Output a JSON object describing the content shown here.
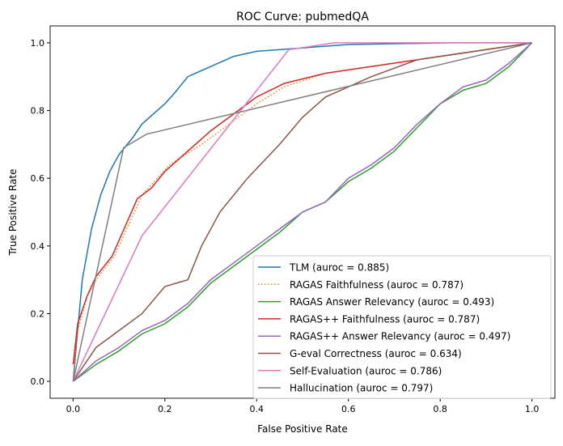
{
  "chart_data": {
    "type": "line",
    "title": "ROC Curve: pubmedQA",
    "xlabel": "False Positive Rate",
    "ylabel": "True Positive Rate",
    "xlim": [
      -0.05,
      1.05
    ],
    "ylim": [
      -0.05,
      1.05
    ],
    "xticks": [
      "0.0",
      "0.2",
      "0.4",
      "0.6",
      "0.8",
      "1.0"
    ],
    "yticks": [
      "0.0",
      "0.2",
      "0.4",
      "0.6",
      "0.8",
      "1.0"
    ],
    "grid": false,
    "legend_position": "lower-right",
    "series": [
      {
        "name": "TLM (auroc = 0.885)",
        "color": "#1f77b4",
        "style": "solid",
        "x": [
          0,
          0.01,
          0.02,
          0.04,
          0.06,
          0.08,
          0.1,
          0.13,
          0.15,
          0.2,
          0.22,
          0.25,
          0.3,
          0.35,
          0.4,
          0.5,
          0.6,
          0.82,
          1
        ],
        "y": [
          0,
          0.15,
          0.3,
          0.45,
          0.55,
          0.62,
          0.67,
          0.72,
          0.76,
          0.82,
          0.85,
          0.9,
          0.93,
          0.96,
          0.975,
          0.985,
          0.995,
          1.0,
          1.0
        ]
      },
      {
        "name": "RAGAS Faithfulness (auroc = 0.787)",
        "color": "#ff7f0e",
        "style": "dotted",
        "x": [
          0,
          0.01,
          0.03,
          0.05,
          0.09,
          0.15,
          0.21,
          0.28,
          0.36,
          0.4,
          0.46,
          0.55,
          0.7,
          0.85,
          1
        ],
        "y": [
          0,
          0.15,
          0.25,
          0.3,
          0.37,
          0.55,
          0.64,
          0.7,
          0.78,
          0.82,
          0.87,
          0.91,
          0.94,
          0.97,
          1
        ]
      },
      {
        "name": "RAGAS Answer Relevancy (auroc = 0.493)",
        "color": "#2ca02c",
        "style": "solid",
        "x": [
          0,
          0.05,
          0.1,
          0.15,
          0.2,
          0.25,
          0.3,
          0.35,
          0.4,
          0.45,
          0.5,
          0.55,
          0.6,
          0.65,
          0.7,
          0.75,
          0.8,
          0.85,
          0.9,
          0.95,
          1
        ],
        "y": [
          0,
          0.05,
          0.09,
          0.14,
          0.17,
          0.22,
          0.29,
          0.34,
          0.39,
          0.44,
          0.5,
          0.53,
          0.59,
          0.63,
          0.68,
          0.75,
          0.82,
          0.86,
          0.88,
          0.93,
          1
        ]
      },
      {
        "name": "RAGAS++ Faithfulness (auroc = 0.787)",
        "color": "#d62728",
        "style": "solid",
        "x": [
          0,
          0.01,
          0.03,
          0.05,
          0.085,
          0.14,
          0.17,
          0.2,
          0.3,
          0.4,
          0.46,
          0.55,
          0.7,
          0.85,
          1
        ],
        "y": [
          0.05,
          0.17,
          0.25,
          0.31,
          0.37,
          0.54,
          0.57,
          0.62,
          0.74,
          0.84,
          0.88,
          0.91,
          0.94,
          0.97,
          1
        ]
      },
      {
        "name": "RAGAS++ Answer Relevancy (auroc = 0.497)",
        "color": "#9467bd",
        "style": "solid",
        "x": [
          0,
          0.05,
          0.1,
          0.15,
          0.2,
          0.25,
          0.3,
          0.35,
          0.4,
          0.45,
          0.5,
          0.55,
          0.6,
          0.65,
          0.7,
          0.75,
          0.8,
          0.85,
          0.9,
          0.95,
          1
        ],
        "y": [
          0,
          0.06,
          0.1,
          0.15,
          0.18,
          0.23,
          0.3,
          0.35,
          0.4,
          0.45,
          0.5,
          0.53,
          0.6,
          0.64,
          0.69,
          0.76,
          0.82,
          0.87,
          0.89,
          0.94,
          1
        ]
      },
      {
        "name": "G-eval Correctness (auroc = 0.634)",
        "color": "#8c564b",
        "style": "solid",
        "x": [
          0,
          0.05,
          0.1,
          0.15,
          0.2,
          0.25,
          0.28,
          0.32,
          0.38,
          0.45,
          0.5,
          0.55,
          0.65,
          0.75,
          0.85,
          1
        ],
        "y": [
          0,
          0.1,
          0.15,
          0.2,
          0.28,
          0.3,
          0.4,
          0.5,
          0.6,
          0.7,
          0.78,
          0.84,
          0.9,
          0.95,
          0.97,
          1
        ]
      },
      {
        "name": "Self-Evaluation (auroc = 0.786)",
        "color": "#e377c2",
        "style": "solid",
        "x": [
          0,
          0.15,
          0.47,
          0.57,
          1
        ],
        "y": [
          0,
          0.43,
          0.98,
          1.0,
          1.0
        ]
      },
      {
        "name": "Hallucination (auroc = 0.797)",
        "color": "#7f7f7f",
        "style": "solid",
        "x": [
          0,
          0.11,
          0.16,
          1
        ],
        "y": [
          0,
          0.69,
          0.73,
          1
        ]
      }
    ]
  }
}
